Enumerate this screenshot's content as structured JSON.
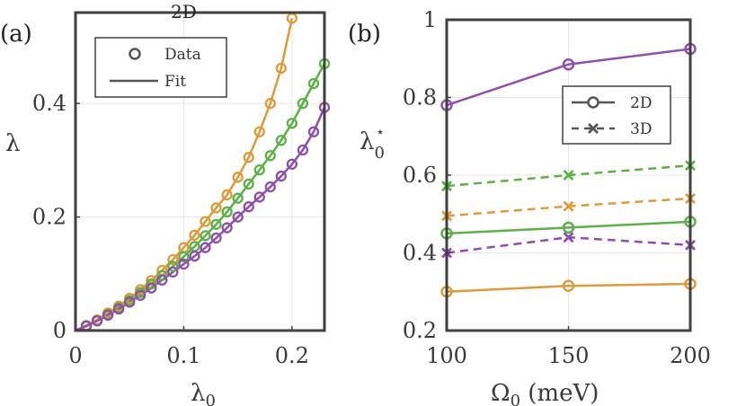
{
  "colors": {
    "orange": "#dc9a3a",
    "green": "#5cb046",
    "purple": "#8e4fab"
  },
  "chart_data": [
    {
      "panel_label": "(a)",
      "type": "scatter",
      "title": "2D",
      "xlabel": "λ",
      "xlabel_sub": "0",
      "ylabel": "λ",
      "xlim": [
        0,
        0.23
      ],
      "ylim": [
        0,
        0.56
      ],
      "xticks": [
        0,
        0.1,
        0.2
      ],
      "xtick_labels": [
        "0",
        "0.1",
        "0.2"
      ],
      "yticks": [
        0,
        0.2,
        0.4
      ],
      "ytick_labels": [
        "0",
        "0.2",
        "0.4"
      ],
      "grid": true,
      "legend": {
        "position": "top-left",
        "entries": [
          "Data",
          "Fit"
        ]
      },
      "series": [
        {
          "color": "orange",
          "x": [
            0,
            0.01,
            0.02,
            0.03,
            0.04,
            0.05,
            0.06,
            0.07,
            0.08,
            0.09,
            0.1,
            0.11,
            0.12,
            0.13,
            0.14,
            0.15,
            0.16,
            0.17,
            0.18,
            0.19,
            0.2
          ],
          "y": [
            0,
            0.009,
            0.019,
            0.031,
            0.043,
            0.057,
            0.072,
            0.088,
            0.106,
            0.125,
            0.146,
            0.168,
            0.192,
            0.216,
            0.239,
            0.27,
            0.305,
            0.35,
            0.4,
            0.462,
            0.55
          ]
        },
        {
          "color": "green",
          "x": [
            0,
            0.01,
            0.02,
            0.03,
            0.04,
            0.05,
            0.06,
            0.07,
            0.08,
            0.09,
            0.1,
            0.11,
            0.12,
            0.13,
            0.14,
            0.15,
            0.16,
            0.17,
            0.18,
            0.19,
            0.2,
            0.21,
            0.22,
            0.23
          ],
          "y": [
            0,
            0.008,
            0.017,
            0.028,
            0.04,
            0.053,
            0.067,
            0.082,
            0.097,
            0.113,
            0.13,
            0.148,
            0.167,
            0.187,
            0.209,
            0.233,
            0.258,
            0.283,
            0.308,
            0.335,
            0.365,
            0.4,
            0.435,
            0.47
          ]
        },
        {
          "color": "purple",
          "x": [
            0,
            0.01,
            0.02,
            0.03,
            0.04,
            0.05,
            0.06,
            0.07,
            0.08,
            0.09,
            0.1,
            0.11,
            0.12,
            0.13,
            0.14,
            0.15,
            0.16,
            0.17,
            0.18,
            0.19,
            0.2,
            0.21,
            0.22,
            0.23
          ],
          "y": [
            0,
            0.008,
            0.017,
            0.027,
            0.038,
            0.05,
            0.062,
            0.075,
            0.089,
            0.103,
            0.117,
            0.131,
            0.146,
            0.163,
            0.181,
            0.2,
            0.218,
            0.235,
            0.253,
            0.272,
            0.293,
            0.318,
            0.35,
            0.393
          ]
        }
      ]
    },
    {
      "panel_label": "(b)",
      "type": "line",
      "xlabel": "Ω",
      "xlabel_sub": "0",
      "xlabel_suffix": " (meV)",
      "ylabel": "λ",
      "ylabel_sub": "0",
      "ylabel_sup": "⋆",
      "x": [
        100,
        150,
        200
      ],
      "xlim": [
        100,
        200
      ],
      "ylim": [
        0.2,
        1.0
      ],
      "xticks": [
        100,
        150,
        200
      ],
      "xtick_labels": [
        "100",
        "150",
        "200"
      ],
      "yticks": [
        0.2,
        0.4,
        0.6,
        0.8,
        1.0
      ],
      "ytick_labels": [
        "0.2",
        "0.4",
        "0.6",
        "0.8",
        "1"
      ],
      "grid": true,
      "legend": {
        "position": "top-right",
        "entries": [
          "2D",
          "3D"
        ]
      },
      "series": [
        {
          "name": "2D",
          "color": "purple",
          "style": "solid",
          "marker": "o",
          "values": [
            0.78,
            0.885,
            0.925
          ]
        },
        {
          "name": "2D",
          "color": "green",
          "style": "solid",
          "marker": "o",
          "values": [
            0.45,
            0.465,
            0.48
          ]
        },
        {
          "name": "2D",
          "color": "orange",
          "style": "solid",
          "marker": "o",
          "values": [
            0.3,
            0.315,
            0.32
          ]
        },
        {
          "name": "3D",
          "color": "green",
          "style": "dashed",
          "marker": "x",
          "values": [
            0.572,
            0.6,
            0.625
          ]
        },
        {
          "name": "3D",
          "color": "orange",
          "style": "dashed",
          "marker": "x",
          "values": [
            0.495,
            0.52,
            0.54
          ]
        },
        {
          "name": "3D",
          "color": "purple",
          "style": "dashed",
          "marker": "x",
          "values": [
            0.4,
            0.44,
            0.42
          ]
        }
      ]
    }
  ]
}
